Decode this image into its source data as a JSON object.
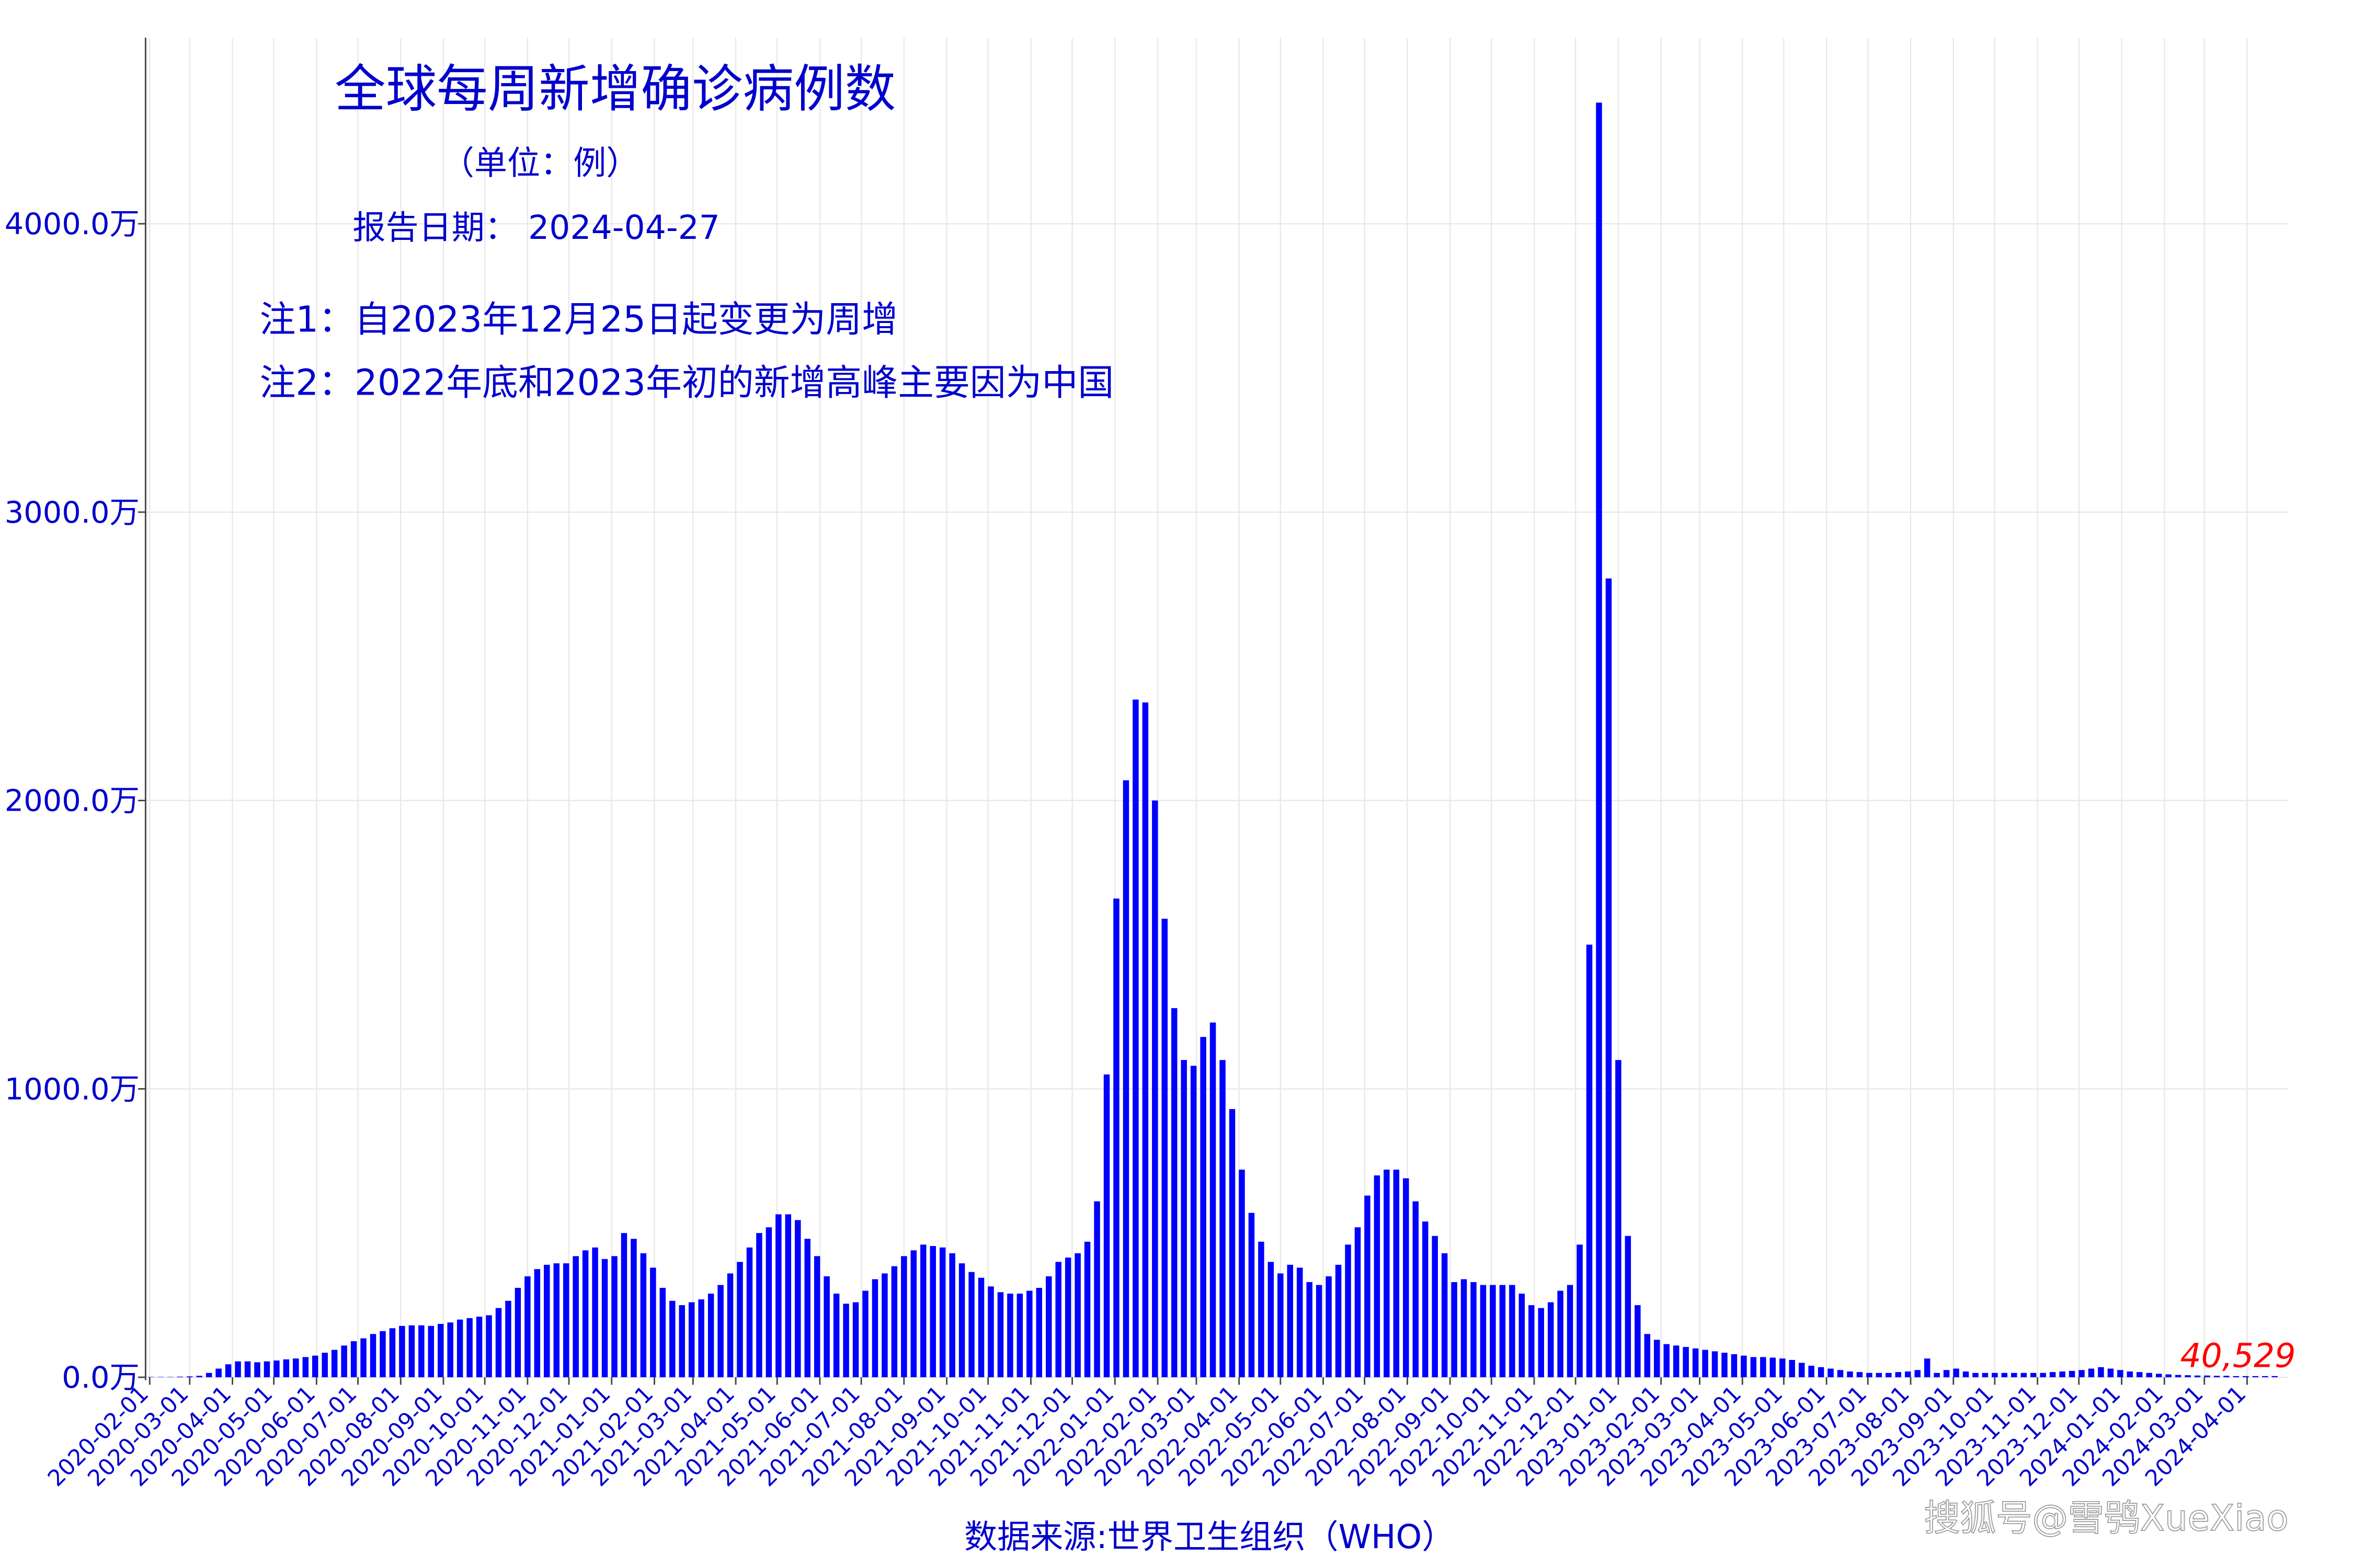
{
  "chart_data": {
    "type": "bar",
    "title": "全球每周新增确诊病例数",
    "subtitle": "（单位：例）",
    "report_date": "报告日期： 2024-04-27",
    "notes": [
      "注1：自2023年12月25日起变更为周增",
      "注2：2022年底和2023年初的新增高峰主要因为中国"
    ],
    "x_label": "数据来源:世界卫生组织（WHO）",
    "watermark": "搜狐号@雪鸮XueXiao",
    "color": "#0000ff",
    "grid": true,
    "xlim": [
      "2020-01-29",
      "2024-05-01"
    ],
    "ylim": [
      0,
      4645
    ],
    "yticks": [
      {
        "value": 0,
        "label": "0.0万"
      },
      {
        "value": 1000,
        "label": "1000.0万"
      },
      {
        "value": 2000,
        "label": "2000.0万"
      },
      {
        "value": 3000,
        "label": "3000.0万"
      },
      {
        "value": 4000,
        "label": "4000.0万"
      }
    ],
    "xticks": [
      "2020-02-01",
      "2020-03-01",
      "2020-04-01",
      "2020-05-01",
      "2020-06-01",
      "2020-07-01",
      "2020-08-01",
      "2020-09-01",
      "2020-10-01",
      "2020-11-01",
      "2020-12-01",
      "2021-01-01",
      "2021-02-01",
      "2021-03-01",
      "2021-04-01",
      "2021-05-01",
      "2021-06-01",
      "2021-07-01",
      "2021-08-01",
      "2021-09-01",
      "2021-10-01",
      "2021-11-01",
      "2021-12-01",
      "2022-01-01",
      "2022-02-01",
      "2022-03-01",
      "2022-04-01",
      "2022-05-01",
      "2022-06-01",
      "2022-07-01",
      "2022-08-01",
      "2022-09-01",
      "2022-10-01",
      "2022-11-01",
      "2022-12-01",
      "2023-01-01",
      "2023-02-01",
      "2023-03-01",
      "2023-04-01",
      "2023-05-01",
      "2023-06-01",
      "2023-07-01",
      "2023-08-01",
      "2023-09-01",
      "2023-10-01",
      "2023-11-01",
      "2023-12-01",
      "2024-01-01",
      "2024-02-01",
      "2024-03-01",
      "2024-04-01"
    ],
    "x": [
      "2020-02-02",
      "2020-02-09",
      "2020-02-16",
      "2020-02-23",
      "2020-03-01",
      "2020-03-08",
      "2020-03-15",
      "2020-03-22",
      "2020-03-29",
      "2020-04-05",
      "2020-04-12",
      "2020-04-19",
      "2020-04-26",
      "2020-05-03",
      "2020-05-10",
      "2020-05-17",
      "2020-05-24",
      "2020-05-31",
      "2020-06-07",
      "2020-06-14",
      "2020-06-21",
      "2020-06-28",
      "2020-07-05",
      "2020-07-12",
      "2020-07-19",
      "2020-07-26",
      "2020-08-02",
      "2020-08-09",
      "2020-08-16",
      "2020-08-23",
      "2020-08-30",
      "2020-09-06",
      "2020-09-13",
      "2020-09-20",
      "2020-09-27",
      "2020-10-04",
      "2020-10-11",
      "2020-10-18",
      "2020-10-25",
      "2020-11-01",
      "2020-11-08",
      "2020-11-15",
      "2020-11-22",
      "2020-11-29",
      "2020-12-06",
      "2020-12-13",
      "2020-12-20",
      "2020-12-27",
      "2021-01-03",
      "2021-01-10",
      "2021-01-17",
      "2021-01-24",
      "2021-01-31",
      "2021-02-07",
      "2021-02-14",
      "2021-02-21",
      "2021-02-28",
      "2021-03-07",
      "2021-03-14",
      "2021-03-21",
      "2021-03-28",
      "2021-04-04",
      "2021-04-11",
      "2021-04-18",
      "2021-04-25",
      "2021-05-02",
      "2021-05-09",
      "2021-05-16",
      "2021-05-23",
      "2021-05-30",
      "2021-06-06",
      "2021-06-13",
      "2021-06-20",
      "2021-06-27",
      "2021-07-04",
      "2021-07-11",
      "2021-07-18",
      "2021-07-25",
      "2021-08-01",
      "2021-08-08",
      "2021-08-15",
      "2021-08-22",
      "2021-08-29",
      "2021-09-05",
      "2021-09-12",
      "2021-09-19",
      "2021-09-26",
      "2021-10-03",
      "2021-10-10",
      "2021-10-17",
      "2021-10-24",
      "2021-10-31",
      "2021-11-07",
      "2021-11-14",
      "2021-11-21",
      "2021-11-28",
      "2021-12-05",
      "2021-12-12",
      "2021-12-19",
      "2021-12-26",
      "2022-01-02",
      "2022-01-09",
      "2022-01-16",
      "2022-01-23",
      "2022-01-30",
      "2022-02-06",
      "2022-02-13",
      "2022-02-20",
      "2022-02-27",
      "2022-03-06",
      "2022-03-13",
      "2022-03-20",
      "2022-03-27",
      "2022-04-03",
      "2022-04-10",
      "2022-04-17",
      "2022-04-24",
      "2022-05-01",
      "2022-05-08",
      "2022-05-15",
      "2022-05-22",
      "2022-05-29",
      "2022-06-05",
      "2022-06-12",
      "2022-06-19",
      "2022-06-26",
      "2022-07-03",
      "2022-07-10",
      "2022-07-17",
      "2022-07-24",
      "2022-07-31",
      "2022-08-07",
      "2022-08-14",
      "2022-08-21",
      "2022-08-28",
      "2022-09-04",
      "2022-09-11",
      "2022-09-18",
      "2022-09-25",
      "2022-10-02",
      "2022-10-09",
      "2022-10-16",
      "2022-10-23",
      "2022-10-30",
      "2022-11-06",
      "2022-11-13",
      "2022-11-20",
      "2022-11-27",
      "2022-12-04",
      "2022-12-11",
      "2022-12-18",
      "2022-12-25",
      "2023-01-01",
      "2023-01-08",
      "2023-01-15",
      "2023-01-22",
      "2023-01-29",
      "2023-02-05",
      "2023-02-12",
      "2023-02-19",
      "2023-02-26",
      "2023-03-05",
      "2023-03-12",
      "2023-03-19",
      "2023-03-26",
      "2023-04-02",
      "2023-04-09",
      "2023-04-16",
      "2023-04-23",
      "2023-04-30",
      "2023-05-07",
      "2023-05-14",
      "2023-05-21",
      "2023-05-28",
      "2023-06-04",
      "2023-06-11",
      "2023-06-18",
      "2023-06-25",
      "2023-07-02",
      "2023-07-09",
      "2023-07-16",
      "2023-07-23",
      "2023-07-30",
      "2023-08-06",
      "2023-08-13",
      "2023-08-20",
      "2023-08-27",
      "2023-09-03",
      "2023-09-10",
      "2023-09-17",
      "2023-09-24",
      "2023-10-01",
      "2023-10-08",
      "2023-10-15",
      "2023-10-22",
      "2023-10-29",
      "2023-11-05",
      "2023-11-12",
      "2023-11-19",
      "2023-11-26",
      "2023-12-03",
      "2023-12-10",
      "2023-12-17",
      "2023-12-24",
      "2023-12-31",
      "2024-01-07",
      "2024-01-14",
      "2024-01-21",
      "2024-01-28",
      "2024-02-04",
      "2024-02-11",
      "2024-02-18",
      "2024-02-25",
      "2024-03-03",
      "2024-03-10",
      "2024-03-17",
      "2024-03-24",
      "2024-03-31",
      "2024-04-07",
      "2024-04-14",
      "2024-04-21"
    ],
    "values": [
      1,
      1,
      1,
      2,
      3,
      5,
      15,
      30,
      45,
      55,
      55,
      52,
      55,
      58,
      62,
      65,
      70,
      75,
      85,
      95,
      110,
      125,
      135,
      150,
      160,
      170,
      178,
      180,
      180,
      178,
      185,
      190,
      200,
      205,
      210,
      215,
      240,
      265,
      310,
      350,
      375,
      390,
      395,
      395,
      420,
      440,
      450,
      410,
      420,
      500,
      480,
      430,
      380,
      310,
      265,
      250,
      260,
      270,
      290,
      320,
      360,
      400,
      450,
      500,
      520,
      565,
      565,
      545,
      480,
      420,
      350,
      290,
      255,
      260,
      300,
      340,
      360,
      385,
      420,
      440,
      460,
      455,
      450,
      430,
      395,
      365,
      345,
      315,
      295,
      290,
      290,
      300,
      310,
      350,
      400,
      415,
      430,
      470,
      610,
      1050,
      1660,
      2070,
      2350,
      2340,
      2000,
      1590,
      1280,
      1100,
      1080,
      1180,
      1230,
      1100,
      930,
      720,
      570,
      470,
      400,
      360,
      390,
      380,
      330,
      320,
      350,
      390,
      460,
      520,
      630,
      700,
      720,
      720,
      690,
      610,
      540,
      490,
      430,
      330,
      340,
      330,
      320,
      320,
      320,
      320,
      290,
      250,
      240,
      260,
      300,
      320,
      460,
      1500,
      4420,
      2770,
      1100,
      490,
      250,
      150,
      130,
      115,
      110,
      105,
      100,
      95,
      90,
      85,
      80,
      75,
      70,
      70,
      68,
      65,
      60,
      50,
      40,
      35,
      30,
      25,
      20,
      18,
      15,
      15,
      15,
      18,
      20,
      25,
      65,
      15,
      25,
      30,
      20,
      15,
      15,
      15,
      15,
      15,
      15,
      15,
      15,
      18,
      20,
      22,
      25,
      30,
      35,
      30,
      25,
      20,
      18,
      15,
      12,
      10,
      8,
      7,
      6,
      6,
      5,
      5,
      4,
      4,
      4,
      4,
      4.0529
    ],
    "value_labels": [
      null,
      null,
      null,
      null,
      null,
      null,
      null,
      null,
      null,
      null,
      null,
      null,
      null,
      null,
      null,
      null,
      null,
      null,
      null,
      null,
      null,
      null,
      null,
      null,
      null,
      null,
      null,
      null,
      null,
      null,
      null,
      null,
      null,
      null,
      null,
      null,
      null,
      null,
      null,
      null,
      null,
      null,
      null,
      null,
      null,
      null,
      null,
      null,
      null,
      null,
      null,
      null,
      null,
      null,
      null,
      null,
      null,
      null,
      null,
      null,
      null,
      null,
      null,
      null,
      null,
      null,
      null,
      null,
      null,
      null,
      null,
      null,
      null,
      null,
      null,
      null,
      null,
      null,
      null,
      null,
      null,
      null,
      null,
      null,
      null,
      null,
      null,
      null,
      null,
      null,
      null,
      null,
      null,
      null,
      null,
      null,
      null,
      null,
      null,
      null,
      null,
      null,
      null,
      null,
      null,
      null,
      null,
      null,
      null,
      null,
      null,
      null,
      null,
      null,
      null,
      null,
      null,
      null,
      null,
      null,
      null,
      null,
      null,
      null,
      null,
      null,
      null,
      null,
      null,
      null,
      null,
      null,
      null,
      null,
      null,
      null,
      null,
      null,
      null,
      null,
      null,
      null,
      null,
      null,
      null,
      null,
      null,
      null,
      null,
      null,
      null,
      null,
      null,
      null,
      null,
      null,
      null,
      null,
      null,
      null,
      null,
      null,
      null,
      null,
      null,
      null,
      null,
      null,
      null,
      null,
      null,
      null,
      null,
      null,
      null,
      null,
      null,
      null,
      null,
      null,
      null,
      null,
      null,
      null,
      null,
      null,
      null,
      null,
      null,
      null,
      null,
      null,
      null,
      null,
      null,
      null,
      null,
      null,
      null,
      null,
      null,
      null,
      null,
      null,
      null,
      null,
      null,
      null,
      null,
      null,
      null,
      null,
      null,
      null,
      null,
      null,
      null,
      null,
      null,
      null,
      "40,529"
    ]
  }
}
